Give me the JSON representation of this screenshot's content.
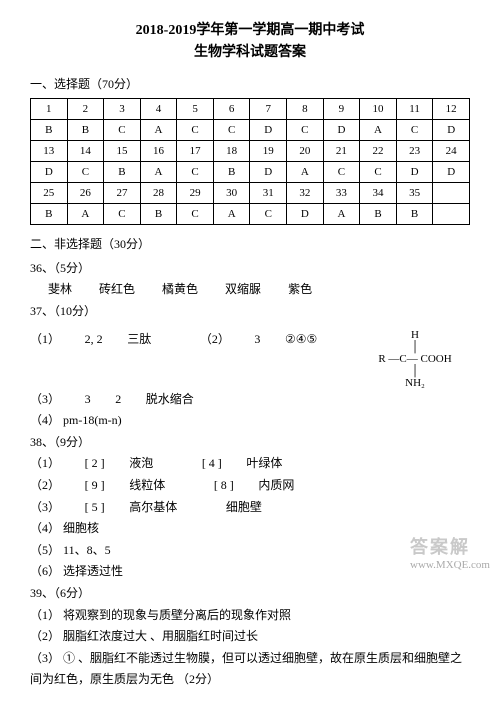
{
  "header": {
    "line1": "2018-2019学年第一学期高一期中考试",
    "line2": "生物学科试题答案"
  },
  "partA": {
    "heading": "一、选择题（70分）",
    "rows": [
      [
        "1",
        "2",
        "3",
        "4",
        "5",
        "6",
        "7",
        "8",
        "9",
        "10",
        "11",
        "12"
      ],
      [
        "B",
        "B",
        "C",
        "A",
        "C",
        "C",
        "D",
        "C",
        "D",
        "A",
        "C",
        "D"
      ],
      [
        "13",
        "14",
        "15",
        "16",
        "17",
        "18",
        "19",
        "20",
        "21",
        "22",
        "23",
        "24"
      ],
      [
        "D",
        "C",
        "B",
        "A",
        "C",
        "B",
        "D",
        "A",
        "C",
        "C",
        "D",
        "D"
      ],
      [
        "25",
        "26",
        "27",
        "28",
        "29",
        "30",
        "31",
        "32",
        "33",
        "34",
        "35",
        ""
      ],
      [
        "B",
        "A",
        "C",
        "B",
        "C",
        "A",
        "C",
        "D",
        "A",
        "B",
        "B",
        ""
      ]
    ]
  },
  "partB_heading": "二、非选择题（30分）",
  "q36": {
    "header": "36、（5分）",
    "items": [
      "斐林",
      "砖红色",
      "橘黄色",
      "双缩脲",
      "紫色"
    ]
  },
  "q37": {
    "header": "37、（10分）",
    "sub1_label": "（1）",
    "sub1_items": [
      "2, 2",
      "三肽"
    ],
    "sub2_label": "（2）",
    "sub2_items": [
      "3",
      "②④⑤"
    ],
    "sub3_label": "（3）",
    "sub3_items": [
      "3",
      "2",
      "脱水缩合"
    ],
    "sub4_label": "（4）",
    "sub4_text": "pm-18(m-n)",
    "molecule": {
      "top": "H",
      "left": "R —",
      "center": "C",
      "right": "— COOH",
      "bottom": "NH₂"
    }
  },
  "q38": {
    "header": "38、（9分）",
    "line1_a_label": "（1）",
    "line1_a_num": "[ 2 ]",
    "line1_a_txt": "液泡",
    "line1_b_num": "[ 4 ]",
    "line1_b_txt": "叶绿体",
    "line2_a_label": "（2）",
    "line2_a_num": "[ 9 ]",
    "line2_a_txt": "线粒体",
    "line2_b_num": "[ 8 ]",
    "line2_b_txt": "内质网",
    "line3_a_label": "（3）",
    "line3_a_num": "[ 5 ]",
    "line3_a_txt": "高尔基体",
    "line3_b_txt": "细胞壁",
    "line4_label": "（4）",
    "line4_txt": "细胞核",
    "line5_label": "（5）",
    "line5_txt": "11、8、5",
    "line6_label": "（6）",
    "line6_txt": "选择透过性"
  },
  "q39": {
    "header": "39、（6分）",
    "a1_label": "（1）",
    "a1_txt": "将观察到的现象与质壁分离后的现象作对照",
    "a2_label": "（2）",
    "a2_txt": "胭脂红浓度过大    、用胭脂红时间过长",
    "a3_label": "（3）",
    "a3_txt": "①  、胭脂红不能透过生物膜，但可以透过细胞壁，故在原生质层和细胞壁之间为红色，原生质层为无色  （2分）"
  },
  "watermark": {
    "big": "答案解",
    "small": "www.MXQE.com"
  }
}
